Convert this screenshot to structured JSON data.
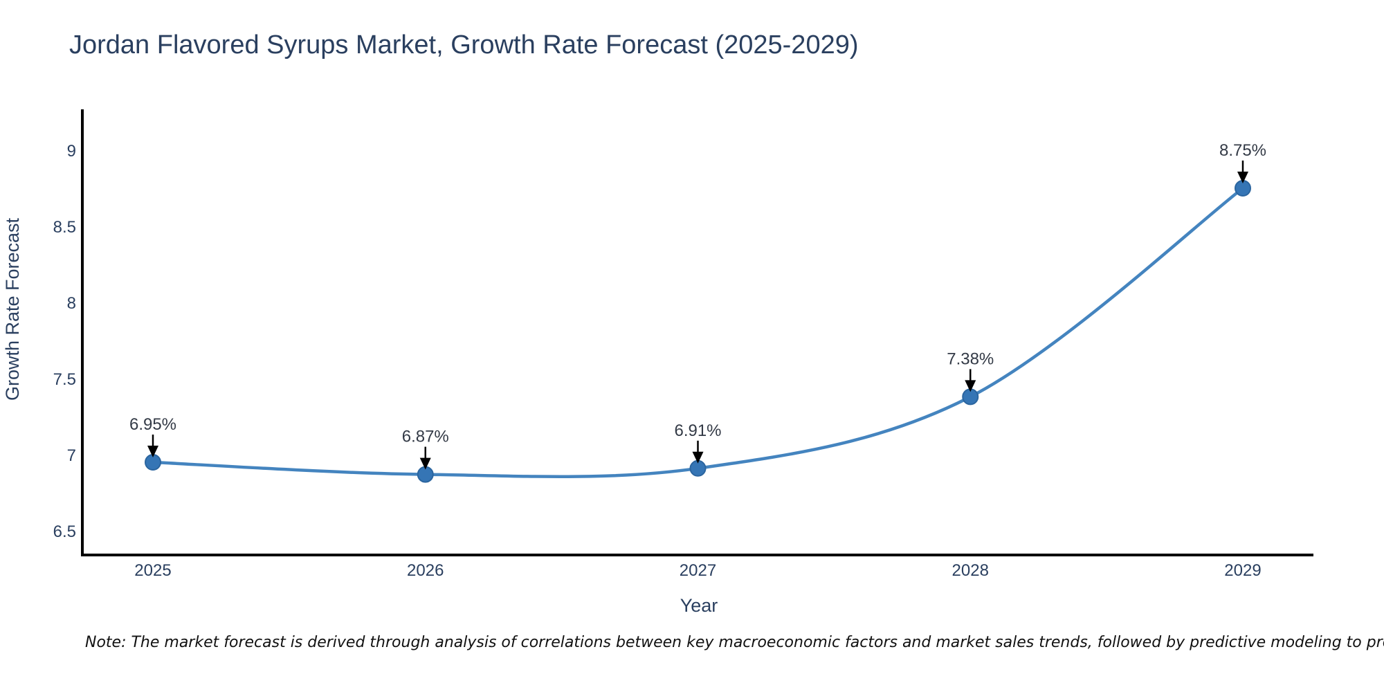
{
  "chart_data": {
    "type": "line",
    "title": "Jordan Flavored Syrups Market, Growth Rate Forecast (2025-2029)",
    "xlabel": "Year",
    "ylabel": "Growth Rate Forecast",
    "x": [
      2025,
      2026,
      2027,
      2028,
      2029
    ],
    "series": [
      {
        "name": "Growth Rate Forecast",
        "values": [
          6.95,
          6.87,
          6.91,
          7.38,
          8.75
        ]
      }
    ],
    "point_labels": [
      "6.95%",
      "6.87%",
      "6.91%",
      "7.38%",
      "8.75%"
    ],
    "yticks": [
      9,
      8.5,
      8,
      7.5,
      7,
      6.5
    ],
    "ytick_labels": [
      "9",
      "8.5",
      "8",
      "7.5",
      "7",
      "6.5"
    ],
    "ylim": [
      6.34,
      9.26
    ],
    "xlim": [
      2024.74,
      2029.26
    ],
    "line_shape": "spline",
    "grid": false,
    "legend": false,
    "colors": {
      "line": "#4484bf",
      "marker_fill": "#3575b5",
      "marker_edge": "#2b659f",
      "axis_spine": "#000000",
      "chart_text": "#2a3f5f",
      "annotation_text": "#333a46",
      "note_text": "#111111",
      "background": "#ffffff"
    }
  },
  "note": {
    "text": "Note: The market forecast is derived through analysis of correlations between key macroeconomic factors and market sales trends, followed by predictive modeling to project future sales"
  }
}
